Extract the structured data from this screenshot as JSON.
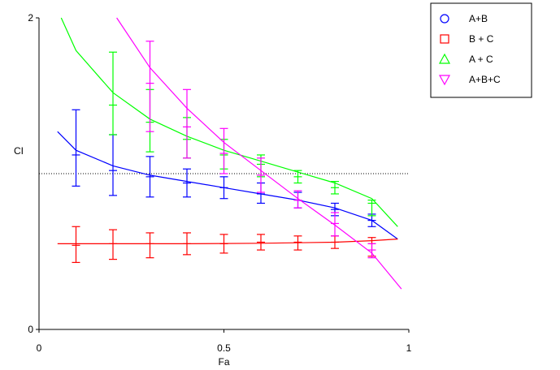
{
  "chart_data": {
    "type": "line",
    "xlabel": "Fa",
    "ylabel": "CI",
    "xlim": [
      0,
      1
    ],
    "ylim": [
      0,
      2
    ],
    "x_ticks": [
      0,
      0.5,
      1
    ],
    "x_tick_labels": [
      "0",
      "0.5",
      "1"
    ],
    "y_ticks": [
      0,
      2
    ],
    "y_tick_labels": [
      "0",
      "2"
    ],
    "reference_line": 1,
    "legend_position": "top-right",
    "series": [
      {
        "name": "A+B",
        "color": "#0000ff",
        "marker": "circle",
        "curve": [
          [
            0.05,
            1.27
          ],
          [
            0.1,
            1.15
          ],
          [
            0.2,
            1.05
          ],
          [
            0.3,
            0.99
          ],
          [
            0.4,
            0.95
          ],
          [
            0.5,
            0.91
          ],
          [
            0.6,
            0.87
          ],
          [
            0.7,
            0.83
          ],
          [
            0.8,
            0.78
          ],
          [
            0.9,
            0.7
          ],
          [
            0.97,
            0.58
          ]
        ],
        "points": [
          {
            "x": 0.1,
            "y": 1.12,
            "lo": 0.92,
            "hi": 1.41
          },
          {
            "x": 0.2,
            "y": 1.02,
            "lo": 0.86,
            "hi": 1.25
          },
          {
            "x": 0.3,
            "y": 0.98,
            "lo": 0.85,
            "hi": 1.11
          },
          {
            "x": 0.4,
            "y": 0.94,
            "lo": 0.85,
            "hi": 1.03
          },
          {
            "x": 0.5,
            "y": 0.91,
            "lo": 0.84,
            "hi": 0.98
          },
          {
            "x": 0.6,
            "y": 0.87,
            "lo": 0.81,
            "hi": 0.94
          },
          {
            "x": 0.7,
            "y": 0.83,
            "lo": 0.78,
            "hi": 0.88
          },
          {
            "x": 0.8,
            "y": 0.77,
            "lo": 0.73,
            "hi": 0.81
          },
          {
            "x": 0.9,
            "y": 0.7,
            "lo": 0.66,
            "hi": 0.74
          }
        ]
      },
      {
        "name": "B + C",
        "color": "#ff0000",
        "marker": "square",
        "curve": [
          [
            0.05,
            0.55
          ],
          [
            0.2,
            0.55
          ],
          [
            0.4,
            0.55
          ],
          [
            0.6,
            0.553
          ],
          [
            0.8,
            0.56
          ],
          [
            0.9,
            0.57
          ],
          [
            0.97,
            0.58
          ]
        ],
        "points": [
          {
            "x": 0.1,
            "y": 0.54,
            "lo": 0.43,
            "hi": 0.66
          },
          {
            "x": 0.2,
            "y": 0.55,
            "lo": 0.45,
            "hi": 0.64
          },
          {
            "x": 0.3,
            "y": 0.55,
            "lo": 0.46,
            "hi": 0.62
          },
          {
            "x": 0.4,
            "y": 0.55,
            "lo": 0.48,
            "hi": 0.62
          },
          {
            "x": 0.5,
            "y": 0.55,
            "lo": 0.49,
            "hi": 0.61
          },
          {
            "x": 0.6,
            "y": 0.56,
            "lo": 0.51,
            "hi": 0.61
          },
          {
            "x": 0.7,
            "y": 0.56,
            "lo": 0.51,
            "hi": 0.6
          },
          {
            "x": 0.8,
            "y": 0.56,
            "lo": 0.52,
            "hi": 0.6
          },
          {
            "x": 0.9,
            "y": 0.55,
            "lo": 0.47,
            "hi": 0.59
          }
        ]
      },
      {
        "name": "A + C",
        "color": "#00ff00",
        "marker": "triangle-up",
        "curve": [
          [
            0.06,
            2.0
          ],
          [
            0.1,
            1.79
          ],
          [
            0.2,
            1.52
          ],
          [
            0.3,
            1.35
          ],
          [
            0.4,
            1.24
          ],
          [
            0.5,
            1.15
          ],
          [
            0.6,
            1.08
          ],
          [
            0.7,
            1.01
          ],
          [
            0.8,
            0.94
          ],
          [
            0.9,
            0.84
          ],
          [
            0.97,
            0.66
          ]
        ],
        "points": [
          {
            "x": 0.2,
            "y": 1.44,
            "lo": 1.25,
            "hi": 1.78
          },
          {
            "x": 0.3,
            "y": 1.33,
            "lo": 1.14,
            "hi": 1.54
          },
          {
            "x": 0.4,
            "y": 1.22,
            "lo": 1.1,
            "hi": 1.36
          },
          {
            "x": 0.5,
            "y": 1.12,
            "lo": 1.03,
            "hi": 1.22
          },
          {
            "x": 0.6,
            "y": 1.06,
            "lo": 0.98,
            "hi": 1.12
          },
          {
            "x": 0.7,
            "y": 0.98,
            "lo": 0.94,
            "hi": 1.02
          },
          {
            "x": 0.8,
            "y": 0.91,
            "lo": 0.87,
            "hi": 0.95
          },
          {
            "x": 0.9,
            "y": 0.81,
            "lo": 0.73,
            "hi": 0.83
          }
        ]
      },
      {
        "name": "A+B+C",
        "color": "#ff00ff",
        "marker": "triangle-down",
        "curve": [
          [
            0.21,
            2.0
          ],
          [
            0.3,
            1.68
          ],
          [
            0.4,
            1.42
          ],
          [
            0.5,
            1.2
          ],
          [
            0.6,
            1.02
          ],
          [
            0.7,
            0.84
          ],
          [
            0.8,
            0.67
          ],
          [
            0.9,
            0.49
          ],
          [
            0.98,
            0.26
          ]
        ],
        "points": [
          {
            "x": 0.3,
            "y": 1.58,
            "lo": 1.27,
            "hi": 1.85
          },
          {
            "x": 0.4,
            "y": 1.3,
            "lo": 1.1,
            "hi": 1.54
          },
          {
            "x": 0.5,
            "y": 1.13,
            "lo": 1.0,
            "hi": 1.29
          },
          {
            "x": 0.6,
            "y": 0.99,
            "lo": 0.88,
            "hi": 1.1
          },
          {
            "x": 0.7,
            "y": 0.83,
            "lo": 0.78,
            "hi": 0.89
          },
          {
            "x": 0.8,
            "y": 0.68,
            "lo": 0.6,
            "hi": 0.75
          },
          {
            "x": 0.9,
            "y": 0.51,
            "lo": 0.46,
            "hi": 0.55
          }
        ]
      }
    ]
  }
}
